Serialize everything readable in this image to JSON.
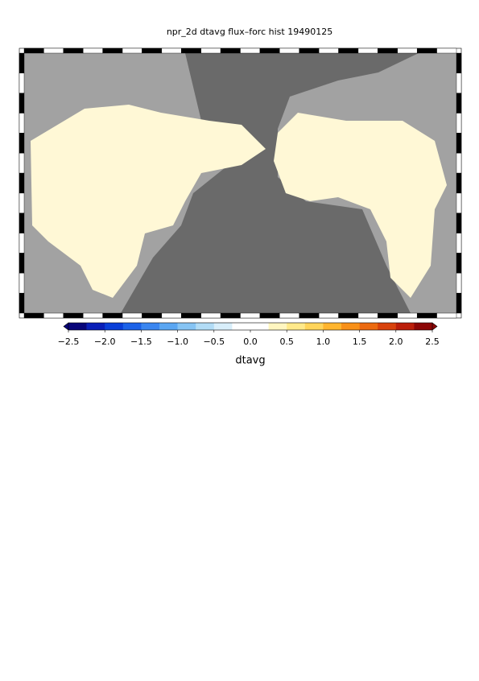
{
  "chart_data": {
    "type": "map",
    "title": "npr_2d dtavg flux–forc hist 19490125",
    "colorbar": {
      "label": "dtavg",
      "lim": [
        -2.5,
        2.5
      ],
      "ticks": [
        {
          "value": -2.5,
          "label": "−2.5"
        },
        {
          "value": -2,
          "label": "−2.0"
        },
        {
          "value": -1.5,
          "label": "−1.5"
        },
        {
          "value": -1,
          "label": "−1.0"
        },
        {
          "value": -0.5,
          "label": "−0.5"
        },
        {
          "value": 0,
          "label": "0.0"
        },
        0.5,
        {
          "value": 1,
          "label": "1.0"
        },
        1.5,
        {
          "value": 2,
          "label": "2.0"
        },
        2.5
      ],
      "colors": [
        "#08057a",
        "#0a1fb8",
        "#0a3fd8",
        "#1c62e8",
        "#3a86f0",
        "#5aa6f2",
        "#86c4f4",
        "#b2dcf6",
        "#d8eefa",
        "#ffffff",
        "#ffffff",
        "#fff6c0",
        "#ffe98a",
        "#ffd45a",
        "#ffb52e",
        "#f89018",
        "#ec6a10",
        "#d8420c",
        "#bb1e0a",
        "#8c0606"
      ]
    }
  }
}
